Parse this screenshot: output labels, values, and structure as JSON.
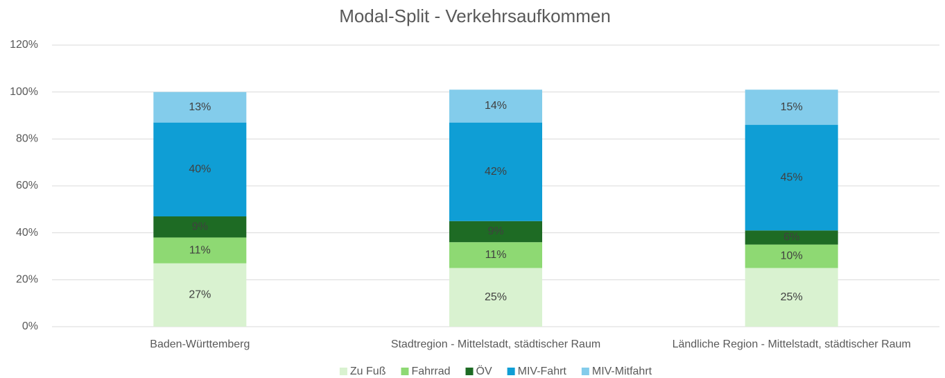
{
  "chart_data": {
    "type": "stacked_bar",
    "title": "Modal-Split - Verkehrsaufkommen",
    "categories": [
      "Baden-Württemberg",
      "Stadtregion - Mittelstadt, städtischer Raum",
      "Ländliche Region - Mittelstadt, städtischer Raum"
    ],
    "series": [
      {
        "name": "Zu Fuß",
        "color": "#d9f2d0",
        "values": [
          27,
          25,
          25
        ],
        "value_labels": [
          "27%",
          "25%",
          "25%"
        ]
      },
      {
        "name": "Fahrrad",
        "color": "#8ed973",
        "values": [
          11,
          11,
          10
        ],
        "value_labels": [
          "11%",
          "11%",
          "10%"
        ]
      },
      {
        "name": "ÖV",
        "color": "#1e6b24",
        "values": [
          9,
          9,
          6
        ],
        "value_labels": [
          "9%",
          "9%",
          "6%"
        ]
      },
      {
        "name": "MIV-Fahrt",
        "color": "#0f9ed5",
        "values": [
          40,
          42,
          45
        ],
        "value_labels": [
          "40%",
          "42%",
          "45%"
        ]
      },
      {
        "name": "MIV-Mitfahrt",
        "color": "#83cceb",
        "values": [
          13,
          14,
          15
        ],
        "value_labels": [
          "13%",
          "14%",
          "15%"
        ]
      }
    ],
    "ylim": [
      0,
      120
    ],
    "yticks": [
      {
        "value": 0,
        "label": "0%"
      },
      {
        "value": 20,
        "label": "20%"
      },
      {
        "value": 40,
        "label": "40%"
      },
      {
        "value": 60,
        "label": "60%"
      },
      {
        "value": 80,
        "label": "80%"
      },
      {
        "value": 100,
        "label": "100%"
      },
      {
        "value": 120,
        "label": "120%"
      }
    ],
    "grid": true,
    "legend": "bottom"
  }
}
